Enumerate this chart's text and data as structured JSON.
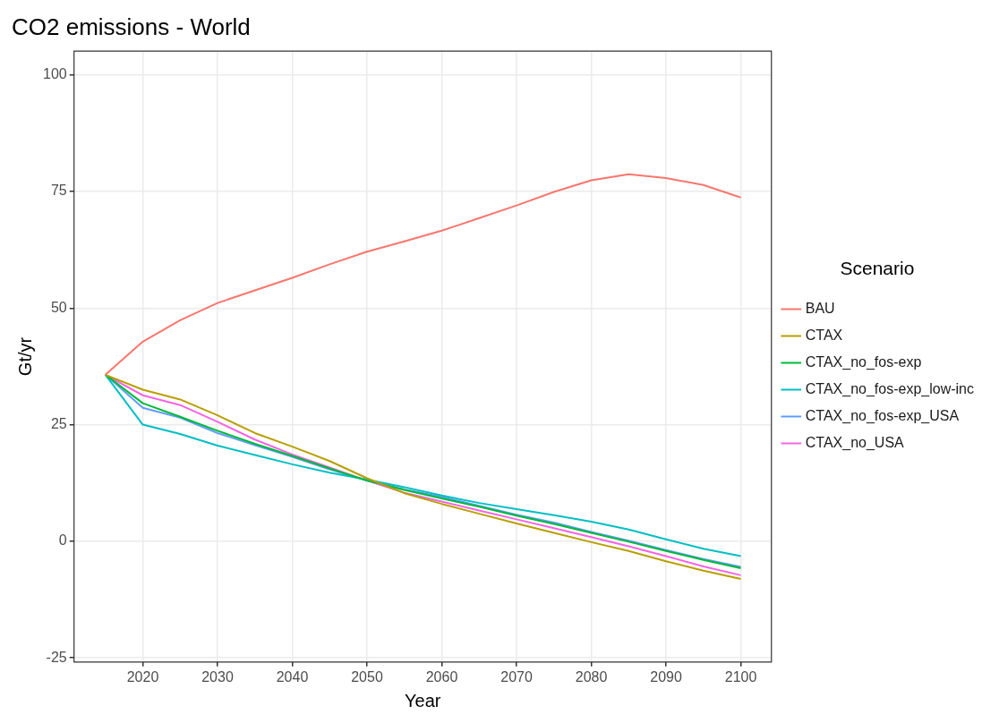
{
  "chart_data": {
    "type": "line",
    "title": "CO2 emissions - World",
    "xlabel": "Year",
    "ylabel": "Gt/yr",
    "legend_title": "Scenario",
    "x": [
      2015,
      2020,
      2025,
      2030,
      2035,
      2040,
      2045,
      2050,
      2055,
      2060,
      2065,
      2070,
      2075,
      2080,
      2085,
      2090,
      2095,
      2100
    ],
    "series": [
      {
        "name": "BAU",
        "color": "#f8766d",
        "values": [
          35.7,
          42.8,
          47.4,
          51.1,
          53.8,
          56.5,
          59.4,
          62.1,
          64.3,
          66.6,
          69.3,
          72.0,
          74.9,
          77.4,
          78.7,
          77.9,
          76.4,
          73.7
        ]
      },
      {
        "name": "CTAX",
        "color": "#b79f00",
        "values": [
          35.7,
          32.5,
          30.4,
          27.0,
          23.2,
          20.3,
          17.2,
          13.5,
          10.3,
          8.0,
          5.9,
          3.8,
          1.8,
          -0.2,
          -2.1,
          -4.3,
          -6.3,
          -8.1
        ]
      },
      {
        "name": "CTAX_no_fos-exp",
        "color": "#00ba38",
        "values": [
          35.7,
          29.6,
          26.7,
          23.7,
          20.9,
          18.3,
          15.6,
          13.0,
          11.0,
          9.2,
          7.4,
          5.5,
          3.7,
          1.8,
          -0.1,
          -2.1,
          -4.0,
          -5.8
        ]
      },
      {
        "name": "CTAX_no_fos-exp_low-inc",
        "color": "#00bfc4",
        "values": [
          35.7,
          25.0,
          23.0,
          20.5,
          18.5,
          16.5,
          14.7,
          13.2,
          11.6,
          9.8,
          8.2,
          6.9,
          5.6,
          4.2,
          2.5,
          0.4,
          -1.6,
          -3.2
        ]
      },
      {
        "name": "CTAX_no_fos-exp_USA",
        "color": "#619cff",
        "values": [
          35.7,
          28.6,
          26.5,
          23.2,
          20.6,
          18.1,
          15.4,
          13.0,
          11.1,
          9.5,
          7.6,
          5.7,
          4.0,
          2.0,
          0.1,
          -1.9,
          -3.8,
          -5.5
        ]
      },
      {
        "name": "CTAX_no_USA",
        "color": "#f564e3",
        "values": [
          35.7,
          31.3,
          29.2,
          25.6,
          21.8,
          18.6,
          15.8,
          13.0,
          10.4,
          8.5,
          6.6,
          4.7,
          2.8,
          0.9,
          -1.1,
          -3.2,
          -5.4,
          -7.3
        ]
      }
    ],
    "xlim": [
      2010.8,
      2104.1
    ],
    "xticks": [
      2020,
      2030,
      2040,
      2050,
      2060,
      2070,
      2080,
      2090,
      2100
    ],
    "ylim": [
      -25.9,
      105.1
    ],
    "yticks": [
      -25,
      0,
      25,
      50,
      75,
      100
    ],
    "grid": true,
    "legend": "right",
    "marker": "none",
    "line_style": "solid"
  }
}
